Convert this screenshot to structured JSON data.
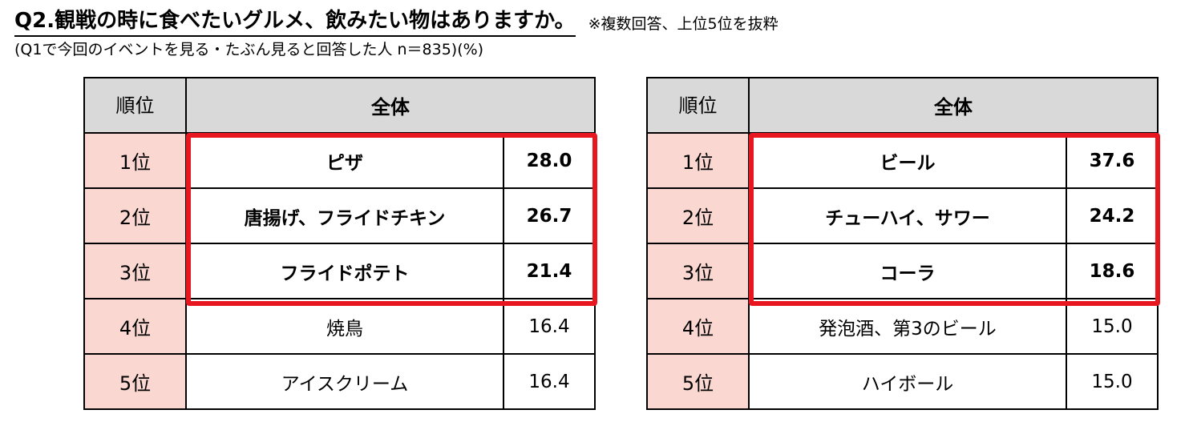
{
  "header": {
    "title": "Q2.観戦の時に食べたいグルメ、飲みたい物はありますか。",
    "note": "※複数回答、上位5位を抜粋",
    "subtitle": "(Q1で今回のイベントを見る・たぶん見ると回答した人 n＝835)(%)"
  },
  "colors": {
    "header_bg": "#d9d9d9",
    "rank_bg": "#fad7d0",
    "highlight_border": "#e8161e"
  },
  "food_table": {
    "rank_header": "順位",
    "group_header": "全体",
    "rows": [
      {
        "rank": "1位",
        "item": "ピザ",
        "value": "28.0"
      },
      {
        "rank": "2位",
        "item": "唐揚げ、フライドチキン",
        "value": "26.7"
      },
      {
        "rank": "3位",
        "item": "フライドポテト",
        "value": "21.4"
      },
      {
        "rank": "4位",
        "item": "焼鳥",
        "value": "16.4"
      },
      {
        "rank": "5位",
        "item": "アイスクリーム",
        "value": "16.4"
      }
    ]
  },
  "drink_table": {
    "rank_header": "順位",
    "group_header": "全体",
    "rows": [
      {
        "rank": "1位",
        "item": "ビール",
        "value": "37.6"
      },
      {
        "rank": "2位",
        "item": "チューハイ、サワー",
        "value": "24.2"
      },
      {
        "rank": "3位",
        "item": "コーラ",
        "value": "18.6"
      },
      {
        "rank": "4位",
        "item": "発泡酒、第3のビール",
        "value": "15.0"
      },
      {
        "rank": "5位",
        "item": "ハイボール",
        "value": "15.0"
      }
    ]
  }
}
